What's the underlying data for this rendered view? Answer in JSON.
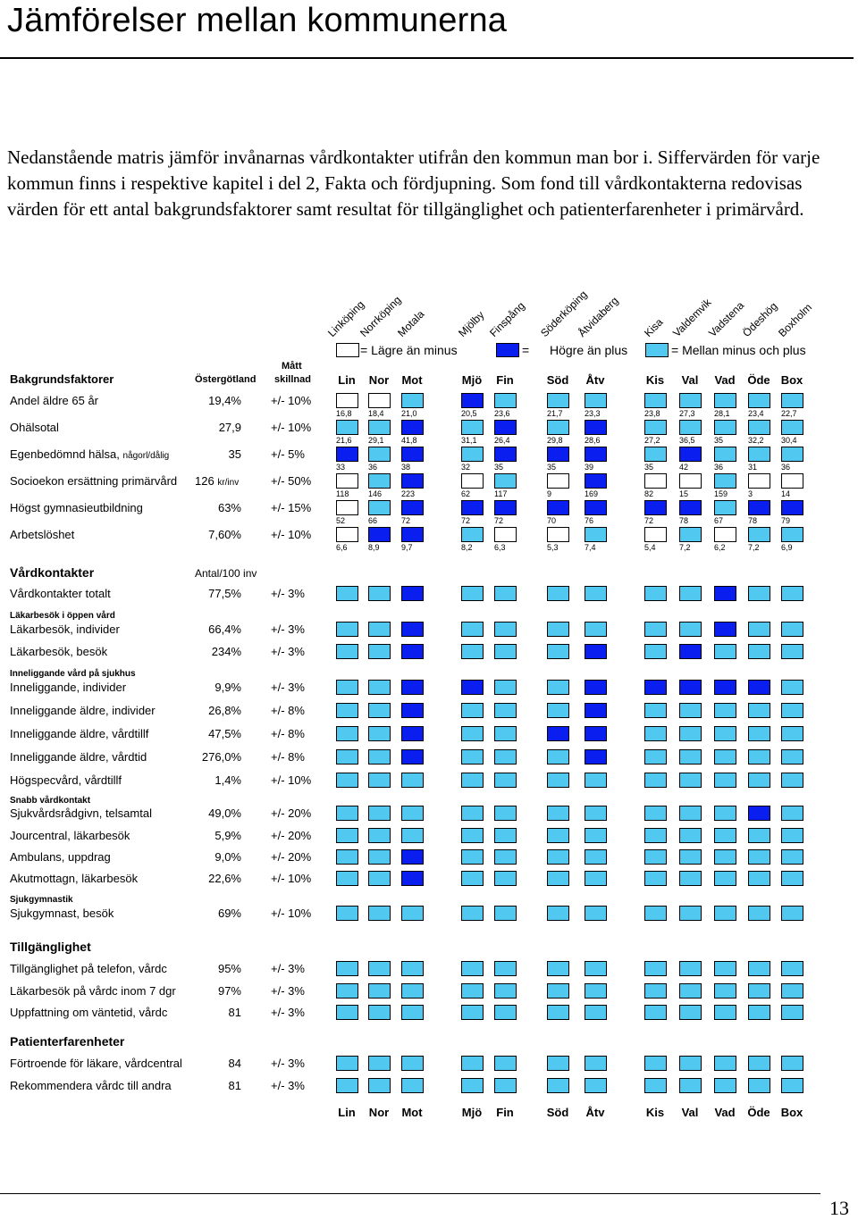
{
  "title": "Jämförelser mellan kommunerna",
  "intro": "Nedanstående matris jämför invånarnas vårdkontakter utifrån den kommun man bor i. Siffervärden för varje kommun finns i respektive kapitel i del 2, Fakta och fördjupning. Som fond till vårdkontakterna redovisas värden för ett antal bakgrundsfaktorer samt resultat för tillgänglighet och patienterfarenheter i primärvård.",
  "colors": {
    "lower": "#ffffff",
    "higher": "#0a1ef0",
    "middle": "#50c8f0"
  },
  "legend": {
    "lower_label": "= Lägre än minus",
    "higher_eq": "=",
    "higher_label": "Högre än plus",
    "middle_label": "= Mellan minus och plus"
  },
  "municipalities": [
    "Linköping",
    "Norrköping",
    "Motala",
    "Mjölby",
    "Finspång",
    "Söderköping",
    "Åtvidaberg",
    "Kisa",
    "Valdemvik",
    "Vadstena",
    "Ödeshög",
    "Boxholm"
  ],
  "col_abbr": [
    "Lin",
    "Nor",
    "Mot",
    "Mjö",
    "Fin",
    "Söd",
    "Åtv",
    "Kis",
    "Val",
    "Vad",
    "Öde",
    "Box"
  ],
  "headers": {
    "bakgrund": "Bakgrundsfaktorer",
    "ostergotland": "Östergötland",
    "matt": "Mått",
    "skillnad": "skillnad"
  },
  "background": [
    {
      "label": "Andel äldre 65 år",
      "value": "19,4%",
      "diff": "+/- 10%",
      "cells": [
        "L",
        "L",
        "M",
        "H",
        "M",
        "M",
        "M",
        "M",
        "M",
        "M",
        "M",
        "M"
      ],
      "values": [
        "16,8",
        "18,4",
        "21,0",
        "20,5",
        "23,6",
        "21,7",
        "23,3",
        "23,8",
        "27,3",
        "28,1",
        "23,4",
        "22,7"
      ]
    },
    {
      "label": "Ohälsotal",
      "value": "27,9",
      "diff": "+/- 10%",
      "cells": [
        "M",
        "M",
        "H",
        "M",
        "H",
        "M",
        "H",
        "M",
        "M",
        "M",
        "M",
        "M"
      ],
      "values": [
        "21,6",
        "29,1",
        "41,8",
        "31,1",
        "26,4",
        "29,8",
        "28,6",
        "27,2",
        "36,5",
        "35",
        "32,2",
        "30,4"
      ]
    },
    {
      "label": "Egenbedömnd hälsa,",
      "label_small": "någorl/dålig",
      "value": "35",
      "diff": "+/- 5%",
      "cells": [
        "H",
        "M",
        "H",
        "M",
        "H",
        "H",
        "H",
        "M",
        "H",
        "M",
        "M",
        "M"
      ],
      "values": [
        "33",
        "36",
        "38",
        "32",
        "35",
        "35",
        "39",
        "35",
        "42",
        "36",
        "31",
        "36"
      ]
    },
    {
      "label": "Socioekon ersättning primärvård",
      "value": "126",
      "value_small": "kr/inv",
      "diff": "+/- 50%",
      "cells": [
        "L",
        "M",
        "H",
        "L",
        "M",
        "L",
        "H",
        "L",
        "L",
        "M",
        "L",
        "L"
      ],
      "values": [
        "118",
        "146",
        "223",
        "62",
        "117",
        "9",
        "169",
        "82",
        "15",
        "159",
        "3",
        "14"
      ]
    },
    {
      "label": "Högst gymnasieutbildning",
      "value": "63%",
      "diff": "+/- 15%",
      "cells": [
        "L",
        "M",
        "H",
        "H",
        "H",
        "H",
        "H",
        "H",
        "H",
        "M",
        "H",
        "H"
      ],
      "values": [
        "52",
        "66",
        "72",
        "72",
        "72",
        "70",
        "76",
        "72",
        "78",
        "67",
        "78",
        "79"
      ]
    },
    {
      "label": "Arbetslöshet",
      "value": "7,60%",
      "diff": "+/- 10%",
      "cells": [
        "L",
        "H",
        "H",
        "M",
        "L",
        "L",
        "M",
        "L",
        "M",
        "L",
        "M",
        "M"
      ],
      "values": [
        "6,6",
        "8,9",
        "9,7",
        "8,2",
        "6,3",
        "5,3",
        "7,4",
        "5,4",
        "7,2",
        "6,2",
        "7,2",
        "6,9"
      ]
    }
  ],
  "sections": {
    "vardkontakter": "Vårdkontakter",
    "antal": "Antal/100 inv",
    "lakarbesok_oppen": "Läkarbesök i öppen vård",
    "inneliggande": "Inneliggande vård på sjukhus",
    "snabb": "Snabb vårdkontakt",
    "sjukgymnastik": "Sjukgymnastik",
    "tillganglighet": "Tillgänglighet",
    "patienterfarenheter": "Patienterfarenheter"
  },
  "rows": [
    {
      "label": "Vårdkontakter totalt",
      "value": "77,5%",
      "diff": "+/- 3%",
      "cells": [
        "M",
        "M",
        "H",
        "M",
        "M",
        "M",
        "M",
        "M",
        "M",
        "H",
        "M",
        "M"
      ]
    },
    {
      "label": "Läkarbesök, individer",
      "value": "66,4%",
      "diff": "+/- 3%",
      "cells": [
        "M",
        "M",
        "H",
        "M",
        "M",
        "M",
        "M",
        "M",
        "M",
        "H",
        "M",
        "M"
      ]
    },
    {
      "label": "Läkarbesök, besök",
      "value": "234%",
      "diff": "+/- 3%",
      "cells": [
        "M",
        "M",
        "H",
        "M",
        "M",
        "M",
        "H",
        "M",
        "H",
        "M",
        "M",
        "M"
      ]
    },
    {
      "label": "Inneliggande, individer",
      "value": "9,9%",
      "diff": "+/- 3%",
      "cells": [
        "M",
        "M",
        "H",
        "H",
        "M",
        "M",
        "H",
        "H",
        "H",
        "H",
        "H",
        "M"
      ]
    },
    {
      "label": "Inneliggande äldre, individer",
      "value": "26,8%",
      "diff": "+/- 8%",
      "cells": [
        "M",
        "M",
        "H",
        "M",
        "M",
        "M",
        "H",
        "M",
        "M",
        "M",
        "M",
        "M"
      ]
    },
    {
      "label": "Inneliggande äldre, vårdtillf",
      "value": "47,5%",
      "diff": "+/- 8%",
      "cells": [
        "M",
        "M",
        "H",
        "M",
        "M",
        "H",
        "H",
        "M",
        "M",
        "M",
        "M",
        "M"
      ]
    },
    {
      "label": "Inneliggande äldre, vårdtid",
      "value": "276,0%",
      "diff": "+/- 8%",
      "cells": [
        "M",
        "M",
        "H",
        "M",
        "M",
        "M",
        "H",
        "M",
        "M",
        "M",
        "M",
        "M"
      ]
    },
    {
      "label": "Högspecvård, vårdtillf",
      "value": "1,4%",
      "diff": "+/- 10%",
      "cells": [
        "M",
        "M",
        "M",
        "M",
        "M",
        "M",
        "M",
        "M",
        "M",
        "M",
        "M",
        "M"
      ]
    },
    {
      "label": "Sjukvårdsrådgivn, telsamtal",
      "value": "49,0%",
      "diff": "+/- 20%",
      "cells": [
        "M",
        "M",
        "M",
        "M",
        "M",
        "M",
        "M",
        "M",
        "M",
        "M",
        "H",
        "M"
      ]
    },
    {
      "label": "Jourcentral, läkarbesök",
      "value": "5,9%",
      "diff": "+/- 20%",
      "cells": [
        "M",
        "M",
        "M",
        "M",
        "M",
        "M",
        "M",
        "M",
        "M",
        "M",
        "M",
        "M"
      ]
    },
    {
      "label": "Ambulans, uppdrag",
      "value": "9,0%",
      "diff": "+/- 20%",
      "cells": [
        "M",
        "M",
        "H",
        "M",
        "M",
        "M",
        "M",
        "M",
        "M",
        "M",
        "M",
        "M"
      ]
    },
    {
      "label": "Akutmottagn, läkarbesök",
      "value": "22,6%",
      "diff": "+/- 10%",
      "cells": [
        "M",
        "M",
        "H",
        "M",
        "M",
        "M",
        "M",
        "M",
        "M",
        "M",
        "M",
        "M"
      ]
    },
    {
      "label": "Sjukgymnast, besök",
      "value": "69%",
      "diff": "+/- 10%",
      "cells": [
        "M",
        "M",
        "M",
        "M",
        "M",
        "M",
        "M",
        "M",
        "M",
        "M",
        "M",
        "M"
      ]
    },
    {
      "label": "Tillgänglighet på telefon, vårdc",
      "value": "95%",
      "diff": "+/- 3%",
      "cells": [
        "M",
        "M",
        "M",
        "M",
        "M",
        "M",
        "M",
        "M",
        "M",
        "M",
        "M",
        "M"
      ]
    },
    {
      "label": "Läkarbesök på vårdc inom 7 dgr",
      "value": "97%",
      "diff": "+/- 3%",
      "cells": [
        "M",
        "M",
        "M",
        "M",
        "M",
        "M",
        "M",
        "M",
        "M",
        "M",
        "M",
        "M"
      ]
    },
    {
      "label": "Uppfattning om väntetid, vårdc",
      "value": "81",
      "diff": "+/- 3%",
      "cells": [
        "M",
        "M",
        "M",
        "M",
        "M",
        "M",
        "M",
        "M",
        "M",
        "M",
        "M",
        "M"
      ]
    },
    {
      "label": "Förtroende för läkare, vårdcentral",
      "value": "84",
      "diff": "+/- 3%",
      "cells": [
        "M",
        "M",
        "M",
        "M",
        "M",
        "M",
        "M",
        "M",
        "M",
        "M",
        "M",
        "M"
      ]
    },
    {
      "label": "Rekommendera vårdc till andra",
      "value": "81",
      "diff": "+/- 3%",
      "cells": [
        "M",
        "M",
        "M",
        "M",
        "M",
        "M",
        "M",
        "M",
        "M",
        "M",
        "M",
        "M"
      ]
    }
  ],
  "page_number": "13"
}
